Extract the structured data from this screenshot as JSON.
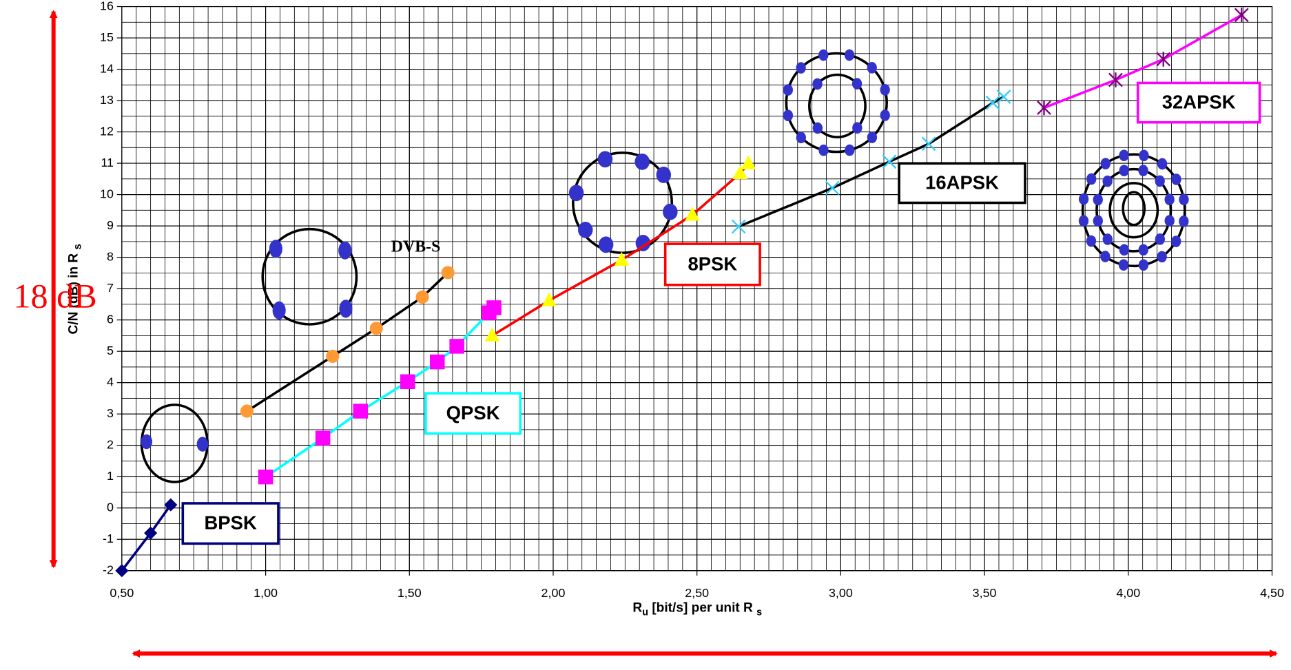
{
  "chart_data": {
    "type": "line",
    "x_label": [
      "R",
      "u",
      " [bit/s] per unit R ",
      "s"
    ],
    "y_label": [
      "C/N (dB) in R ",
      "s"
    ],
    "annotation": "18 dB",
    "xlim": [
      0.5,
      4.5
    ],
    "ylim": [
      -2,
      16
    ],
    "xticks": [
      {
        "value": 0.5,
        "label": "0,50"
      },
      {
        "value": 1.0,
        "label": "1,00"
      },
      {
        "value": 1.5,
        "label": "1,50"
      },
      {
        "value": 2.0,
        "label": "2,00"
      },
      {
        "value": 2.5,
        "label": "2,50"
      },
      {
        "value": 3.0,
        "label": "3,00"
      },
      {
        "value": 3.5,
        "label": "3,50"
      },
      {
        "value": 4.0,
        "label": "4,00"
      },
      {
        "value": 4.5,
        "label": "4,50"
      }
    ],
    "yticks": [
      -2,
      -1,
      0,
      1,
      2,
      3,
      4,
      5,
      6,
      7,
      8,
      9,
      10,
      11,
      12,
      13,
      14,
      15,
      16
    ],
    "grid": true,
    "x_minor_step": 0.05,
    "y_minor_step": 0.5,
    "series": [
      {
        "name": "BPSK",
        "color": "#000080",
        "marker_color": "#000080",
        "marker": "diamond",
        "x": [
          0.5,
          0.6,
          0.67
        ],
        "values": [
          -2.0,
          -0.8,
          0.1
        ]
      },
      {
        "name": "DVB-S",
        "color": "#000000",
        "marker_color": "#ff9933",
        "marker": "circle",
        "x": [
          0.935,
          1.233,
          1.385,
          1.545,
          1.634
        ],
        "values": [
          3.09,
          4.84,
          5.73,
          6.73,
          7.51
        ]
      },
      {
        "name": "QPSK",
        "color": "#00ffff",
        "marker_color": "#ff00ff",
        "marker": "square",
        "x": [
          1.0,
          1.199,
          1.33,
          1.494,
          1.597,
          1.665,
          1.777,
          1.794
        ],
        "values": [
          0.99,
          2.23,
          3.09,
          4.03,
          4.66,
          5.16,
          6.23,
          6.39
        ]
      },
      {
        "name": "8PSK",
        "color": "#ff0000",
        "marker_color": "#ffff00",
        "marker": "triangle",
        "x": [
          1.788,
          1.986,
          2.238,
          2.484,
          2.65,
          2.679
        ],
        "values": [
          5.5,
          6.62,
          7.91,
          9.35,
          10.68,
          10.99
        ]
      },
      {
        "name": "16APSK",
        "color": "#000000",
        "marker_color": "#33ccff",
        "marker": "x",
        "x": [
          2.645,
          2.971,
          3.169,
          3.306,
          3.529,
          3.567
        ],
        "values": [
          8.98,
          10.21,
          11.05,
          11.62,
          12.93,
          13.12
        ]
      },
      {
        "name": "32APSK",
        "color": "#ff00ff",
        "marker_color": "#800080",
        "marker": "asterisk",
        "x": [
          3.707,
          3.956,
          4.122,
          4.394
        ],
        "values": [
          12.77,
          13.66,
          14.32,
          15.73
        ]
      }
    ]
  }
}
